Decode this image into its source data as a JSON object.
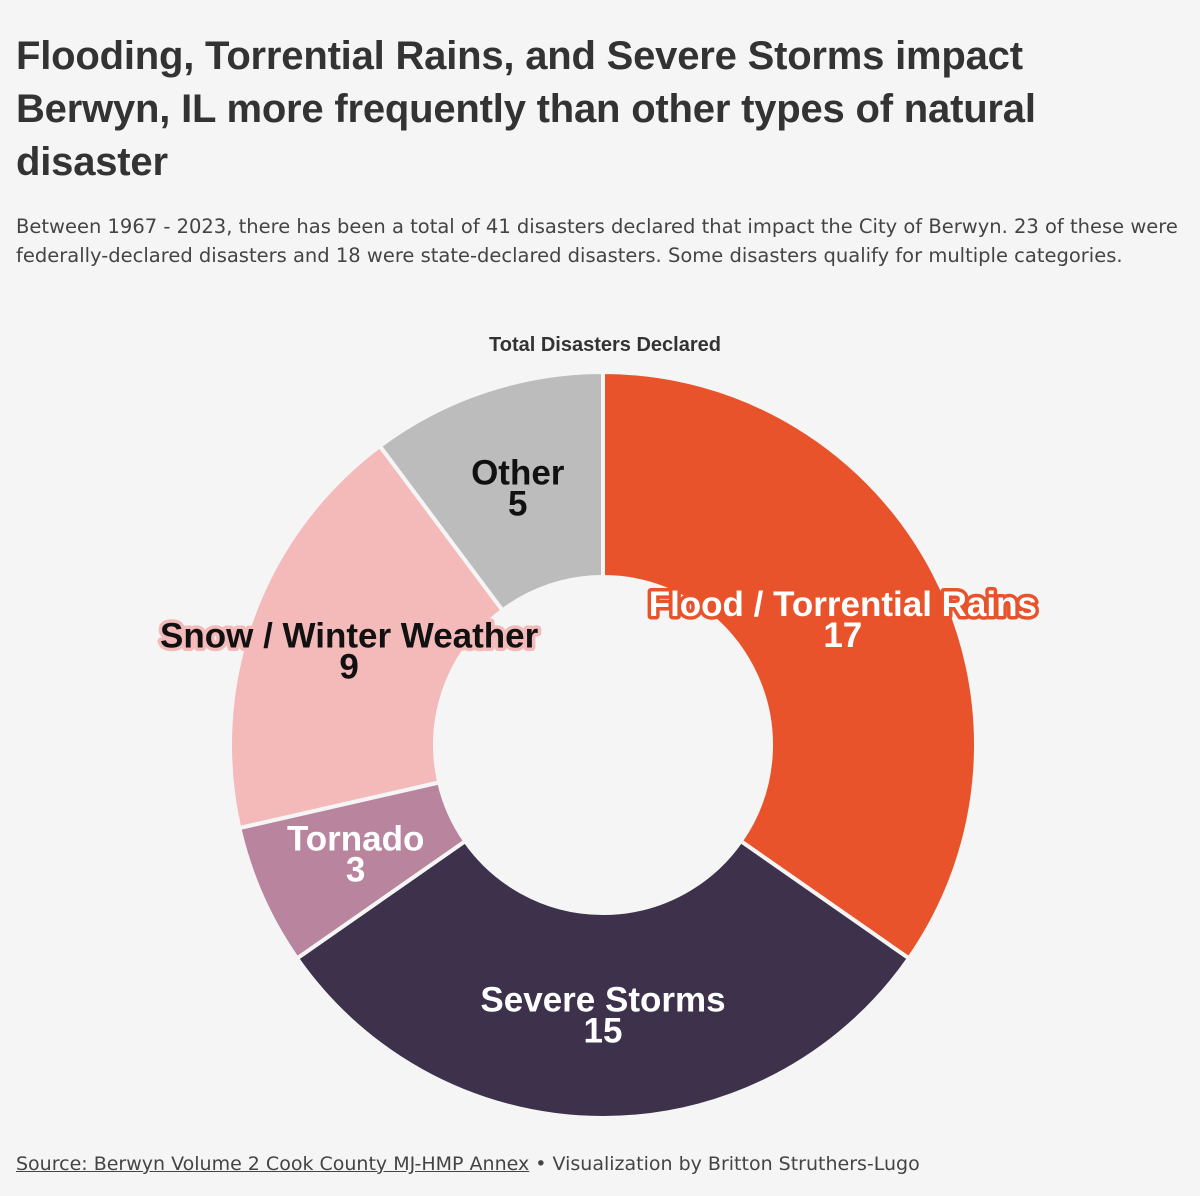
{
  "title": "Flooding, Torrential Rains, and Severe Storms impact Berwyn, IL more frequently than other types of natural disaster",
  "subtitle": "Between 1967 - 2023, there has been a total of 41 disasters declared that impact the City of Berwyn. 23 of these were federally-declared disasters and 18 were state-declared disasters. Some disasters qualify for multiple categories.",
  "footer": {
    "source_link": "Source: Berwyn Volume 2 Cook County MJ-HMP Annex",
    "separator": " • ",
    "credit": "Visualization by Britton Struthers-Lugo"
  },
  "chart_data": {
    "type": "pie",
    "variant": "donut",
    "title": "Total Disasters Declared",
    "slices": [
      {
        "label": "Flood / Torrential Rains",
        "value": 17,
        "color": "#e8532b",
        "text_color": "#ffffff",
        "halo_color": "#e8532b"
      },
      {
        "label": "Severe Storms",
        "value": 15,
        "color": "#3d314b",
        "text_color": "#ffffff",
        "halo_color": "#3d314b"
      },
      {
        "label": "Tornado",
        "value": 3,
        "color": "#b8849e",
        "text_color": "#ffffff",
        "halo_color": "#b8849e"
      },
      {
        "label": "Snow / Winter Weather",
        "value": 9,
        "color": "#f4b9b9",
        "text_color": "#111111",
        "halo_color": "#f4b9b9"
      },
      {
        "label": "Other",
        "value": 5,
        "color": "#bcbcbc",
        "text_color": "#111111",
        "halo_color": "#bcbcbc"
      }
    ]
  }
}
